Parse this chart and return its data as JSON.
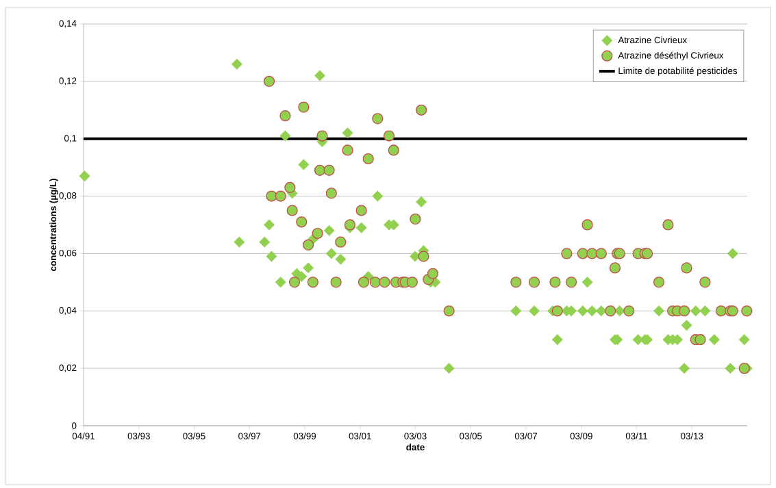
{
  "chart_data": {
    "type": "scatter",
    "xlabel": "date",
    "ylabel": "concentrations (µg/L)",
    "xlim": [
      "1991-04-01",
      "2015-03-26"
    ],
    "xticks": [
      {
        "value": "1991-04-01",
        "label": "04/91"
      },
      {
        "value": "1993-03-31",
        "label": "03/93"
      },
      {
        "value": "1995-03-31",
        "label": "03/95"
      },
      {
        "value": "1997-03-30",
        "label": "03/97"
      },
      {
        "value": "1999-03-30",
        "label": "03/99"
      },
      {
        "value": "2001-03-29",
        "label": "03/01"
      },
      {
        "value": "2003-03-29",
        "label": "03/03"
      },
      {
        "value": "2005-03-28",
        "label": "03/05"
      },
      {
        "value": "2007-03-28",
        "label": "03/07"
      },
      {
        "value": "2009-03-27",
        "label": "03/09"
      },
      {
        "value": "2011-03-27",
        "label": "03/11"
      },
      {
        "value": "2013-03-26",
        "label": "03/13"
      }
    ],
    "ylim": [
      0,
      0.14
    ],
    "yticks": [
      0,
      {
        "value": 0.02,
        "label": "0,02"
      },
      {
        "value": 0.04,
        "label": "0,04"
      },
      {
        "value": 0.06,
        "label": "0,06"
      },
      {
        "value": 0.08,
        "label": "0,08"
      },
      {
        "value": 0.1,
        "label": "0,1"
      },
      {
        "value": 0.12,
        "label": "0,12"
      },
      {
        "value": 0.14,
        "label": "0,14"
      }
    ],
    "grid": "y",
    "legend": "top right",
    "ref_lines": [
      {
        "axis": "y",
        "value": 0.1,
        "label": "Limite de potabilité pesticides",
        "color": "#000000"
      }
    ],
    "series": [
      {
        "name": "Atrazine Civrieux",
        "color": "#92d050",
        "marker": "diamond",
        "x": [
          "1991-04-15",
          "1996-10-15",
          "1996-11-15",
          "1997-10-15",
          "1997-12-15",
          "1998-01-15",
          "1998-05-15",
          "1998-07-15",
          "1998-10-15",
          "1998-12-15",
          "1999-02-15",
          "1999-03-15",
          "1999-05-15",
          "1999-07-15",
          "1999-10-15",
          "1999-11-15",
          "2000-02-15",
          "2000-03-15",
          "2000-07-15",
          "2000-10-15",
          "2000-11-15",
          "2001-04-15",
          "2001-07-15",
          "2001-11-15",
          "2002-04-15",
          "2002-06-15",
          "2003-03-25",
          "2003-06-15",
          "2003-07-15",
          "2003-10-15",
          "2003-12-15",
          "2004-06-15",
          "2006-11-15",
          "2007-07-15",
          "2008-03-15",
          "2008-05-15",
          "2008-09-15",
          "2008-11-15",
          "2009-04-15",
          "2009-06-15",
          "2009-08-15",
          "2009-12-15",
          "2010-06-15",
          "2010-07-15",
          "2010-08-15",
          "2011-04-15",
          "2011-07-15",
          "2011-08-15",
          "2012-01-15",
          "2012-05-15",
          "2012-07-15",
          "2012-09-15",
          "2012-12-15",
          "2013-01-15",
          "2013-05-15",
          "2013-09-15",
          "2014-01-15",
          "2014-08-15",
          "2014-09-15",
          "2015-02-15",
          "2015-03-25"
        ],
        "values": [
          0.087,
          0.126,
          0.064,
          0.064,
          0.07,
          0.059,
          0.05,
          0.101,
          0.081,
          0.053,
          0.052,
          0.091,
          0.055,
          0.065,
          0.122,
          0.099,
          0.068,
          0.06,
          0.058,
          0.102,
          0.069,
          0.069,
          0.052,
          0.08,
          0.07,
          0.07,
          0.059,
          0.078,
          0.061,
          0.05,
          0.05,
          0.02,
          0.04,
          0.04,
          0.04,
          0.03,
          0.04,
          0.04,
          0.04,
          0.05,
          0.04,
          0.04,
          0.03,
          0.03,
          0.04,
          0.03,
          0.03,
          0.03,
          0.04,
          0.03,
          0.03,
          0.03,
          0.02,
          0.035,
          0.04,
          0.04,
          0.03,
          0.02,
          0.06,
          0.03,
          0.02
        ]
      },
      {
        "name": "Atrazine déséthyl Civrieux",
        "color": "#92d050",
        "marker": "circle",
        "x": [
          "1997-12-15",
          "1998-01-15",
          "1998-05-15",
          "1998-07-15",
          "1998-09-15",
          "1998-10-15",
          "1998-11-15",
          "1999-02-15",
          "1999-03-15",
          "1999-05-15",
          "1999-07-15",
          "1999-09-15",
          "1999-10-15",
          "1999-11-15",
          "2000-02-15",
          "2000-03-15",
          "2000-05-15",
          "2000-07-15",
          "2000-10-15",
          "2000-11-15",
          "2001-04-15",
          "2001-05-15",
          "2001-07-15",
          "2001-10-15",
          "2001-11-15",
          "2002-02-15",
          "2002-04-15",
          "2002-06-15",
          "2002-07-15",
          "2002-10-15",
          "2002-11-15",
          "2003-02-15",
          "2003-03-28",
          "2003-06-15",
          "2003-07-15",
          "2003-09-15",
          "2003-11-15",
          "2004-06-15",
          "2006-11-15",
          "2007-07-15",
          "2008-04-15",
          "2008-05-15",
          "2008-09-15",
          "2008-11-15",
          "2009-04-15",
          "2009-06-15",
          "2009-08-15",
          "2009-12-15",
          "2010-04-15",
          "2010-06-15",
          "2010-07-15",
          "2010-08-15",
          "2010-12-15",
          "2011-04-15",
          "2011-07-15",
          "2011-08-15",
          "2012-01-15",
          "2012-05-15",
          "2012-07-15",
          "2012-09-15",
          "2012-12-15",
          "2013-01-15",
          "2013-05-15",
          "2013-07-15",
          "2013-09-15",
          "2014-04-15",
          "2014-08-15",
          "2014-09-15",
          "2015-02-15",
          "2015-03-20"
        ],
        "values": [
          0.12,
          0.08,
          0.08,
          0.108,
          0.083,
          0.075,
          0.05,
          0.071,
          0.111,
          0.063,
          0.05,
          0.067,
          0.089,
          0.101,
          0.089,
          0.081,
          0.05,
          0.064,
          0.096,
          0.07,
          0.075,
          0.05,
          0.093,
          0.05,
          0.107,
          0.05,
          0.101,
          0.096,
          0.05,
          0.05,
          0.05,
          0.05,
          0.072,
          0.11,
          0.059,
          0.051,
          0.053,
          0.04,
          0.05,
          0.05,
          0.05,
          0.04,
          0.06,
          0.05,
          0.06,
          0.07,
          0.06,
          0.06,
          0.04,
          0.055,
          0.06,
          0.06,
          0.04,
          0.06,
          0.06,
          0.06,
          0.05,
          0.07,
          0.04,
          0.04,
          0.04,
          0.055,
          0.03,
          0.03,
          0.05,
          0.04,
          0.04,
          0.04,
          0.02,
          0.04
        ]
      }
    ]
  }
}
